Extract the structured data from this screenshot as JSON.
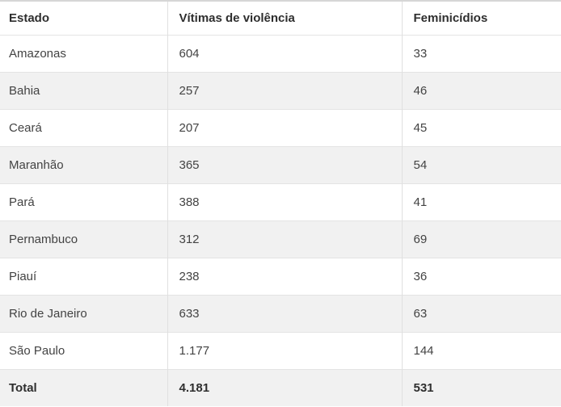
{
  "colors": {
    "top_border": "#d6d6d6",
    "row_border": "#e4e4e4",
    "column_border": "#e0e0e0",
    "alt_row_bg": "#f1f1f1",
    "header_text": "#2e2e2e",
    "cell_text": "#434343"
  },
  "table": {
    "headers": [
      "Estado",
      "Vítimas de violência",
      "Feminicídios"
    ],
    "rows": [
      [
        "Amazonas",
        "604",
        "33"
      ],
      [
        "Bahia",
        "257",
        "46"
      ],
      [
        "Ceará",
        "207",
        "45"
      ],
      [
        "Maranhão",
        "365",
        "54"
      ],
      [
        "Pará",
        "388",
        "41"
      ],
      [
        "Pernambuco",
        "312",
        "69"
      ],
      [
        "Piauí",
        "238",
        "36"
      ],
      [
        "Rio de Janeiro",
        "633",
        "63"
      ],
      [
        "São Paulo",
        "1.177",
        "144"
      ],
      [
        "Total",
        "4.181",
        "531"
      ]
    ]
  },
  "chart_data": {
    "type": "table",
    "title": "",
    "columns": [
      "Estado",
      "Vítimas de violência",
      "Feminicídios"
    ],
    "categories": [
      "Amazonas",
      "Bahia",
      "Ceará",
      "Maranhão",
      "Pará",
      "Pernambuco",
      "Piauí",
      "Rio de Janeiro",
      "São Paulo"
    ],
    "series": [
      {
        "name": "Vítimas de violência",
        "values": [
          604,
          257,
          207,
          365,
          388,
          312,
          238,
          633,
          1177
        ]
      },
      {
        "name": "Feminicídios",
        "values": [
          33,
          46,
          45,
          54,
          41,
          69,
          36,
          63,
          144
        ]
      }
    ],
    "totals": {
      "label": "Total",
      "vitimas_de_violencia": 4181,
      "feminicidios": 531
    },
    "number_format": "pt-BR thousands separator (.)"
  }
}
